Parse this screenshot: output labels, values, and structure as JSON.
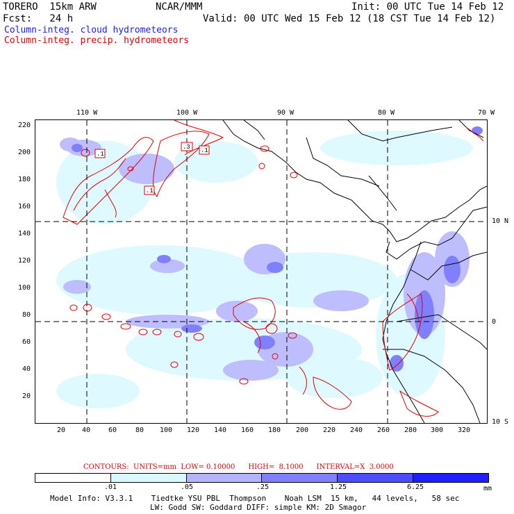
{
  "header": {
    "model": "TORERO  15km ARW",
    "org": "NCAR/MMM",
    "init": "Init: 00 UTC Tue 14 Feb 12",
    "fcst": "Fcst:   24 h",
    "valid": "Valid: 00 UTC Wed 15 Feb 12 (18 CST Tue 14 Feb 12)",
    "field1": "Column-integ. cloud hydrometeors",
    "field2": "Column-integ. precip. hydrometeors"
  },
  "colors": {
    "cloud_fill": "#6a6aff",
    "precip_contour": "#e00000",
    "legend": [
      "#ffffff",
      "#d9f9ff",
      "#b3b3ff",
      "#8080ff",
      "#4d4dff",
      "#2020ff"
    ]
  },
  "top_axis": [
    "110 W",
    "100 W",
    "90 W",
    "80 W",
    "70 W"
  ],
  "right_axis": [
    "10 N",
    "0",
    "10 S"
  ],
  "left_axis": [
    "220",
    "200",
    "180",
    "160",
    "140",
    "120",
    "100",
    "80",
    "60",
    "40",
    "20"
  ],
  "bottom_axis": [
    "20",
    "40",
    "60",
    "80",
    "100",
    "120",
    "140",
    "160",
    "180",
    "200",
    "220",
    "240",
    "260",
    "280",
    "300",
    "320"
  ],
  "contour_boxes": [
    ".1",
    ".3",
    ".1",
    ".1"
  ],
  "contour_info": "CONTOURS:  UNITS=mm  LOW= 0.10000      HIGH=  8.1000      INTERVAL=X  3.0000",
  "legend": {
    "labels": [
      ".01",
      ".05",
      ".25",
      "1.25",
      "6.25"
    ],
    "units": "mm"
  },
  "footer": {
    "line1": "Model Info: V3.3.1    Tiedtke YSU PBL  Thompson    Noah LSM  15 km,   44 levels,   58 sec",
    "line2": "LW: Godd SW: Goddard DIFF: simple KM: 2D Smagor"
  }
}
